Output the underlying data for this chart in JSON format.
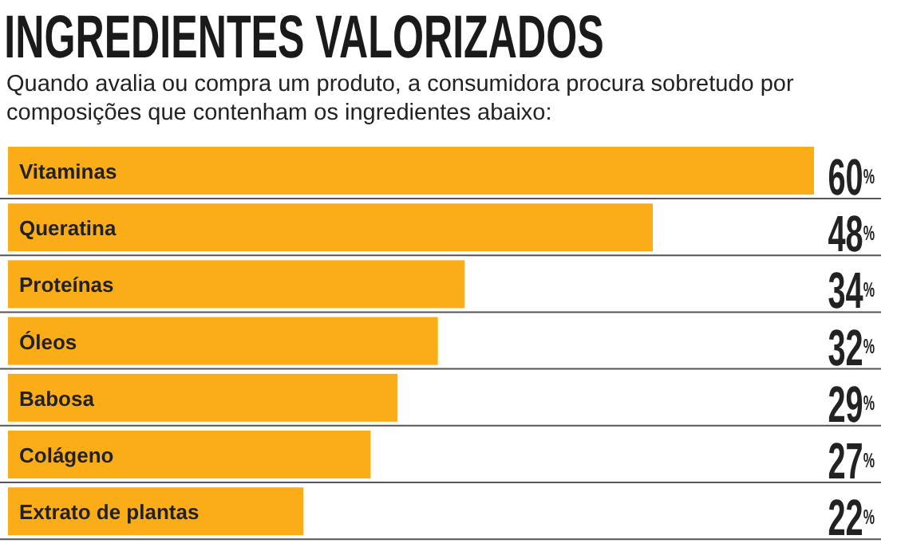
{
  "chart_data": {
    "type": "bar",
    "orientation": "horizontal",
    "title": "INGREDIENTES VALORIZADOS",
    "subtitle": "Quando avalia ou compra um produto, a consumidora procura sobretudo por composições que contenham os ingredientes abaixo:",
    "categories": [
      "Vitaminas",
      "Queratina",
      "Proteínas",
      "Óleos",
      "Babosa",
      "Colágeno",
      "Extrato de plantas"
    ],
    "values": [
      60,
      48,
      34,
      32,
      29,
      27,
      22
    ],
    "value_labels": [
      "60$^{%}$",
      "48$^{%}$",
      "34$^{%}$",
      "32$^{%}$",
      "29$^{%}$",
      "27$^{%}$",
      "22$^{%}$"
    ],
    "color": "#fbad18"
  }
}
